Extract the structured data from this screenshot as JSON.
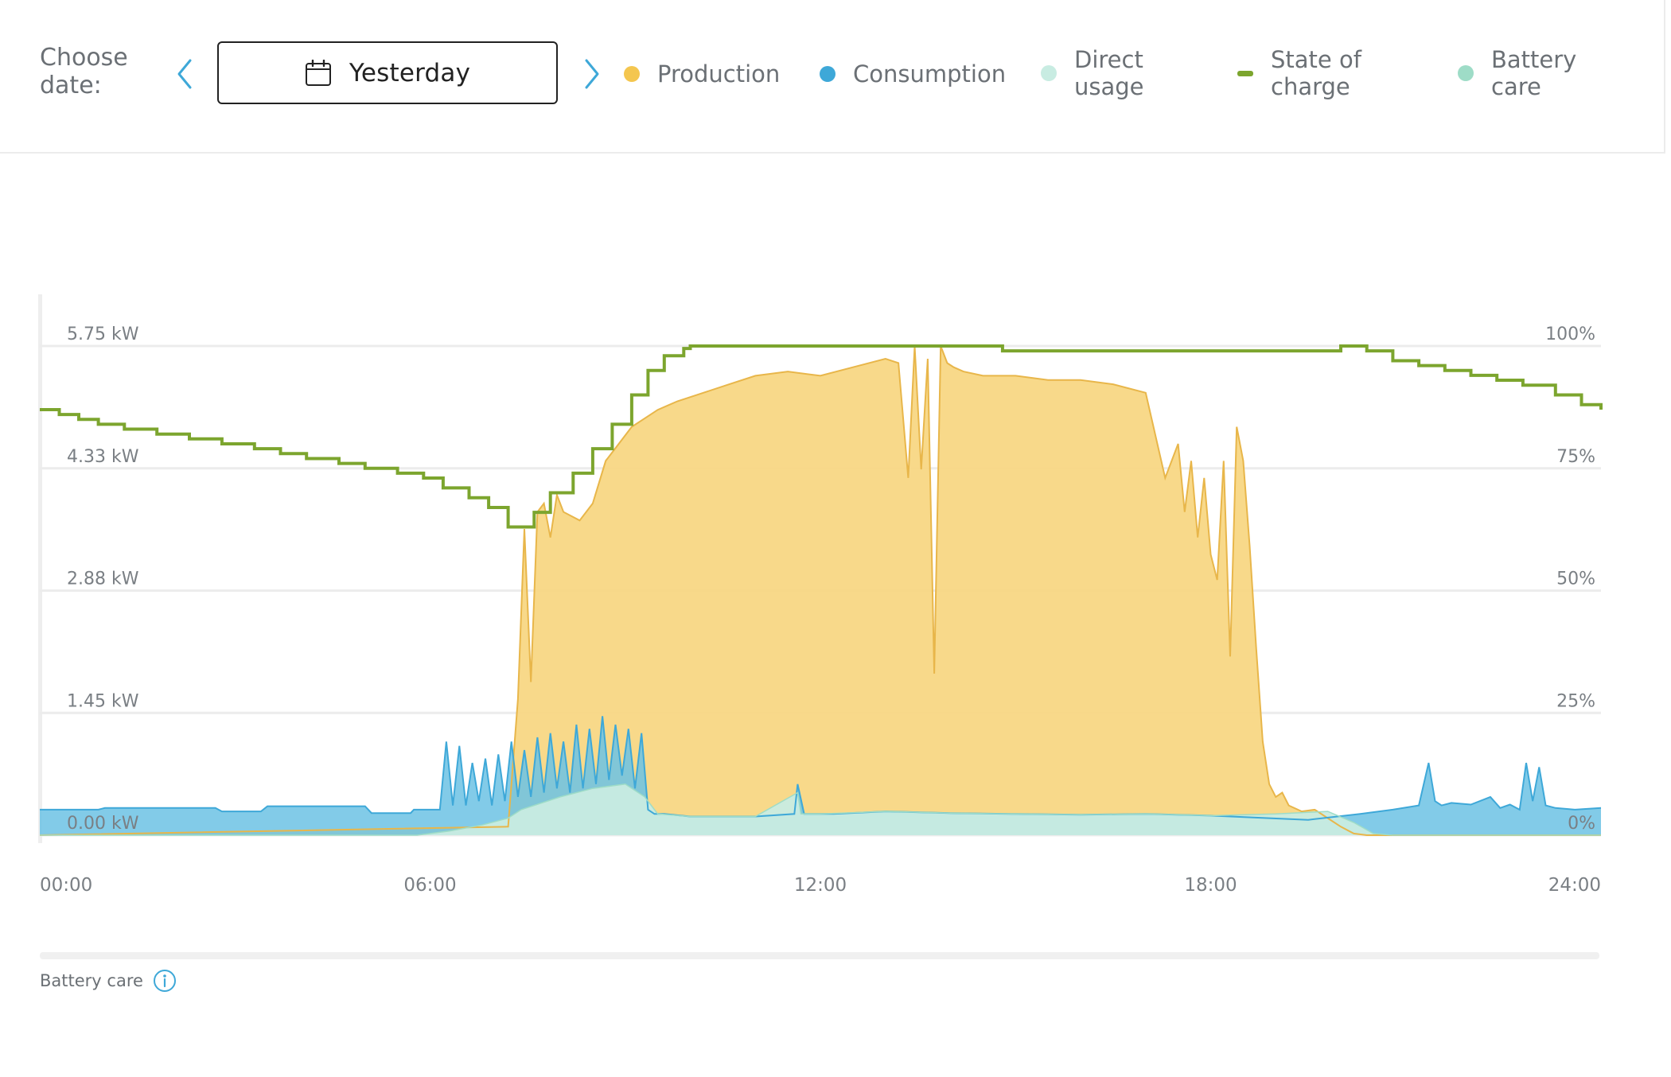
{
  "header": {
    "choose_date_label": "Choose\ndate:",
    "date_value": "Yesterday",
    "icons": {
      "prev": "chevron-left-icon",
      "next": "chevron-right-icon",
      "calendar": "calendar-icon"
    }
  },
  "legend": [
    {
      "key": "production",
      "label": "Production",
      "color": "#f4c64f",
      "shape": "dot"
    },
    {
      "key": "consumption",
      "label": "Consumption",
      "color": "#3ea8d8",
      "shape": "dot"
    },
    {
      "key": "direct",
      "label": "Direct\nusage",
      "color": "#c8ece2",
      "shape": "dot"
    },
    {
      "key": "soc",
      "label": "State of\ncharge",
      "color": "#7ca52e",
      "shape": "dash"
    },
    {
      "key": "battery_care",
      "label": "Battery\ncare",
      "color": "#9edcc7",
      "shape": "dot"
    }
  ],
  "chart_data": {
    "type": "area",
    "y_left_ticks": [
      "5.75 kW",
      "4.33 kW",
      "2.88 kW",
      "1.45 kW",
      "0.00 kW"
    ],
    "y_left_range": [
      0,
      5.75
    ],
    "y_right_ticks": [
      "100%",
      "75%",
      "50%",
      "25%",
      "0%"
    ],
    "y_right_range": [
      0,
      100
    ],
    "x_ticks": [
      "00:00",
      "06:00",
      "12:00",
      "18:00",
      "24:00"
    ],
    "x_range_hours": [
      0,
      24
    ],
    "grid": true,
    "series": [
      {
        "name": "Production",
        "axis": "left",
        "color": "#f4c64f",
        "x": [
          0,
          7.2,
          7.35,
          7.45,
          7.55,
          7.65,
          7.75,
          7.85,
          7.95,
          8.05,
          8.3,
          8.5,
          8.7,
          8.9,
          9.1,
          9.3,
          9.5,
          9.8,
          10.2,
          10.6,
          11.0,
          11.5,
          12.0,
          12.5,
          13.0,
          13.2,
          13.35,
          13.45,
          13.55,
          13.65,
          13.75,
          13.85,
          13.95,
          14.05,
          14.2,
          14.5,
          15.0,
          15.5,
          16.0,
          16.5,
          17.0,
          17.3,
          17.5,
          17.6,
          17.7,
          17.8,
          17.9,
          18.0,
          18.1,
          18.2,
          18.3,
          18.4,
          18.5,
          18.6,
          18.7,
          18.8,
          18.9,
          19.0,
          19.1,
          19.2,
          19.4,
          19.6,
          19.8,
          20.0,
          20.2,
          20.4,
          24
        ],
        "values": [
          0,
          0.1,
          1.6,
          3.6,
          1.8,
          3.8,
          3.9,
          3.5,
          4.0,
          3.8,
          3.7,
          3.9,
          4.4,
          4.6,
          4.8,
          4.9,
          5.0,
          5.1,
          5.2,
          5.3,
          5.4,
          5.45,
          5.4,
          5.5,
          5.6,
          5.55,
          4.2,
          5.75,
          4.3,
          5.6,
          1.9,
          5.75,
          5.55,
          5.5,
          5.45,
          5.4,
          5.4,
          5.35,
          5.35,
          5.3,
          5.2,
          4.2,
          4.6,
          3.8,
          4.4,
          3.5,
          4.2,
          3.3,
          3.0,
          4.4,
          2.1,
          4.8,
          4.4,
          3.4,
          2.2,
          1.1,
          0.6,
          0.45,
          0.5,
          0.35,
          0.28,
          0.3,
          0.2,
          0.1,
          0.02,
          0,
          0
        ]
      },
      {
        "name": "Consumption",
        "axis": "left",
        "color": "#3ea8d8",
        "x": [
          0,
          0.9,
          1.0,
          2.7,
          2.8,
          3.4,
          3.5,
          5.0,
          5.1,
          5.7,
          5.75,
          6.15,
          6.25,
          6.35,
          6.45,
          6.55,
          6.65,
          6.75,
          6.85,
          6.95,
          7.05,
          7.15,
          7.25,
          7.35,
          7.45,
          7.55,
          7.65,
          7.75,
          7.85,
          7.95,
          8.05,
          8.15,
          8.25,
          8.35,
          8.45,
          8.55,
          8.65,
          8.75,
          8.85,
          8.95,
          9.05,
          9.15,
          9.25,
          9.35,
          9.45,
          9.6,
          10.0,
          11.0,
          11.6,
          11.65,
          11.75,
          12.2,
          13.0,
          14.0,
          15.0,
          16.0,
          17.0,
          18.0,
          18.9,
          19.5,
          20.3,
          20.8,
          21.2,
          21.35,
          21.45,
          21.55,
          21.7,
          22.0,
          22.3,
          22.45,
          22.6,
          22.75,
          22.85,
          22.95,
          23.05,
          23.15,
          23.3,
          23.6,
          24
        ],
        "values": [
          0.3,
          0.3,
          0.32,
          0.32,
          0.28,
          0.28,
          0.34,
          0.34,
          0.26,
          0.26,
          0.3,
          0.3,
          1.1,
          0.35,
          1.05,
          0.35,
          0.85,
          0.4,
          0.9,
          0.35,
          0.95,
          0.4,
          1.1,
          0.45,
          1.0,
          0.45,
          1.15,
          0.5,
          1.2,
          0.55,
          1.1,
          0.5,
          1.3,
          0.55,
          1.25,
          0.6,
          1.4,
          0.65,
          1.3,
          0.7,
          1.25,
          0.55,
          1.2,
          0.3,
          0.25,
          0.25,
          0.22,
          0.22,
          0.25,
          0.6,
          0.25,
          0.25,
          0.28,
          0.26,
          0.25,
          0.24,
          0.25,
          0.23,
          0.2,
          0.18,
          0.25,
          0.3,
          0.35,
          0.85,
          0.4,
          0.35,
          0.38,
          0.36,
          0.45,
          0.32,
          0.36,
          0.3,
          0.85,
          0.4,
          0.8,
          0.35,
          0.32,
          0.3,
          0.32
        ]
      },
      {
        "name": "Direct usage",
        "axis": "left",
        "color": "#c8ece2",
        "x": [
          0,
          5.8,
          6.3,
          6.8,
          7.2,
          7.4,
          8.0,
          8.5,
          9.0,
          9.3,
          9.5,
          10.0,
          11.0,
          11.65,
          11.7,
          11.8,
          12.0,
          13.0,
          14.0,
          15.0,
          16.0,
          17.0,
          18.0,
          19.0,
          19.8,
          20.2,
          20.5,
          20.8,
          24
        ],
        "values": [
          0,
          0,
          0.05,
          0.12,
          0.2,
          0.3,
          0.45,
          0.55,
          0.6,
          0.45,
          0.25,
          0.22,
          0.22,
          0.5,
          0.25,
          0.25,
          0.25,
          0.28,
          0.26,
          0.25,
          0.24,
          0.25,
          0.23,
          0.25,
          0.28,
          0.15,
          0.02,
          0,
          0
        ]
      },
      {
        "name": "State of charge",
        "axis": "right",
        "color": "#7ca52e",
        "x": [
          0,
          0.3,
          0.6,
          0.9,
          1.3,
          1.8,
          2.3,
          2.8,
          3.3,
          3.7,
          4.1,
          4.6,
          5.0,
          5.5,
          5.9,
          6.2,
          6.6,
          6.9,
          7.2,
          7.35,
          7.6,
          7.85,
          8.2,
          8.5,
          8.8,
          9.1,
          9.35,
          9.6,
          9.9,
          10.0,
          13.5,
          14.5,
          14.8,
          20.0,
          20.4,
          20.8,
          21.2,
          21.6,
          22.0,
          22.4,
          22.8,
          23.3,
          23.7,
          24
        ],
        "values": [
          87,
          86,
          85,
          84,
          83,
          82,
          81,
          80,
          79,
          78,
          77,
          76,
          75,
          74,
          73,
          71,
          69,
          67,
          63,
          63,
          66,
          70,
          74,
          79,
          84,
          90,
          95,
          98,
          99.5,
          100,
          100,
          100,
          99,
          100,
          99,
          97,
          96,
          95,
          94,
          93,
          92,
          90,
          88,
          87
        ]
      }
    ]
  },
  "footer": {
    "battery_care_label": "Battery care"
  }
}
